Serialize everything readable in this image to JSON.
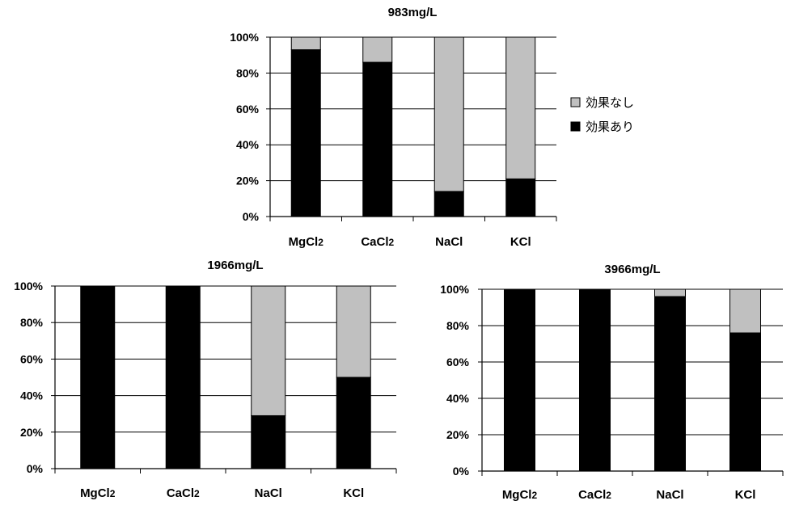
{
  "chart_data": [
    {
      "type": "bar",
      "stacked": true,
      "percent_stacked": true,
      "title": "983mg/L",
      "categories": [
        "MgCl2",
        "CaCl2",
        "NaCl",
        "KCl"
      ],
      "y_tick_labels": [
        "0%",
        "20%",
        "40%",
        "60%",
        "80%",
        "100%"
      ],
      "ylim": [
        0,
        100
      ],
      "grid": true,
      "legend": "right",
      "series": [
        {
          "name": "効果あり",
          "color": "#000000",
          "values": [
            93,
            86,
            14,
            21
          ]
        },
        {
          "name": "効果なし",
          "color": "#c0c0c0",
          "values": [
            7,
            14,
            86,
            79
          ]
        }
      ]
    },
    {
      "type": "bar",
      "stacked": true,
      "percent_stacked": true,
      "title": "1966mg/L",
      "categories": [
        "MgCl2",
        "CaCl2",
        "NaCl",
        "KCl"
      ],
      "y_tick_labels": [
        "0%",
        "20%",
        "40%",
        "60%",
        "80%",
        "100%"
      ],
      "ylim": [
        0,
        100
      ],
      "grid": true,
      "series": [
        {
          "name": "効果あり",
          "color": "#000000",
          "values": [
            100,
            100,
            29,
            50
          ]
        },
        {
          "name": "効果なし",
          "color": "#c0c0c0",
          "values": [
            0,
            0,
            71,
            50
          ]
        }
      ]
    },
    {
      "type": "bar",
      "stacked": true,
      "percent_stacked": true,
      "title": "3966mg/L",
      "categories": [
        "MgCl2",
        "CaCl2",
        "NaCl",
        "KCl"
      ],
      "y_tick_labels": [
        "0%",
        "20%",
        "40%",
        "60%",
        "80%",
        "100%"
      ],
      "ylim": [
        0,
        100
      ],
      "grid": true,
      "series": [
        {
          "name": "効果あり",
          "color": "#000000",
          "values": [
            100,
            100,
            96,
            76
          ]
        },
        {
          "name": "効果なし",
          "color": "#c0c0c0",
          "values": [
            0,
            0,
            4,
            24
          ]
        }
      ]
    }
  ]
}
